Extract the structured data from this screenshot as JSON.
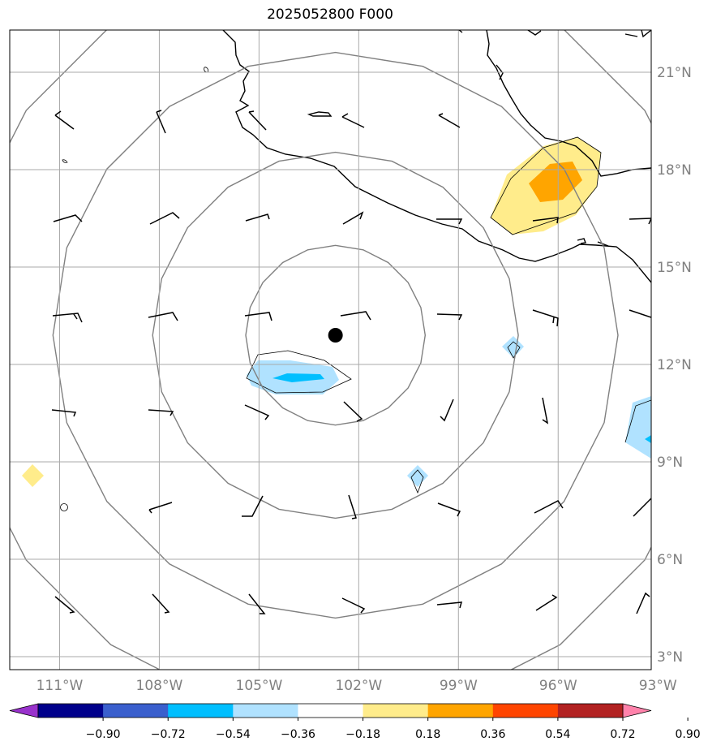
{
  "title": "2025052800 F000",
  "map": {
    "lon_range": [
      -112.5,
      -93.2
    ],
    "lat_range": [
      2.6,
      22.3
    ],
    "lat_ticks": [
      {
        "value": 21,
        "label": "21°N"
      },
      {
        "value": 18,
        "label": "18°N"
      },
      {
        "value": 15,
        "label": "15°N"
      },
      {
        "value": 12,
        "label": "12°N"
      },
      {
        "value": 9,
        "label": "9°N"
      },
      {
        "value": 6,
        "label": "6°N"
      },
      {
        "value": 3,
        "label": "3°N"
      }
    ],
    "lon_ticks": [
      {
        "value": -111,
        "label": "111°W"
      },
      {
        "value": -108,
        "label": "108°W"
      },
      {
        "value": -105,
        "label": "105°W"
      },
      {
        "value": -102,
        "label": "102°W"
      },
      {
        "value": -99,
        "label": "99°W"
      },
      {
        "value": -96,
        "label": "96°W"
      },
      {
        "value": -93,
        "label": "93°W"
      }
    ],
    "storm_center": {
      "lon": -102.7,
      "lat": 12.9
    },
    "range_rings": {
      "center": {
        "lon": -102.7,
        "lat": 12.9
      },
      "radii_deg": [
        2.7,
        5.5,
        8.5,
        11.5
      ]
    },
    "grid": true
  },
  "colorbar": {
    "labels": [
      "−0.90",
      "−0.72",
      "−0.54",
      "−0.36",
      "−0.18",
      "0.18",
      "0.36",
      "0.54",
      "0.72",
      "0.90"
    ],
    "colors": [
      "#9932cc",
      "#00008b",
      "#3a5fcd",
      "#00bfff",
      "#b0e2ff",
      "#ffffff",
      "#ffec8b",
      "#ffa500",
      "#ff4500",
      "#b22222",
      "#ff82ab"
    ]
  }
}
